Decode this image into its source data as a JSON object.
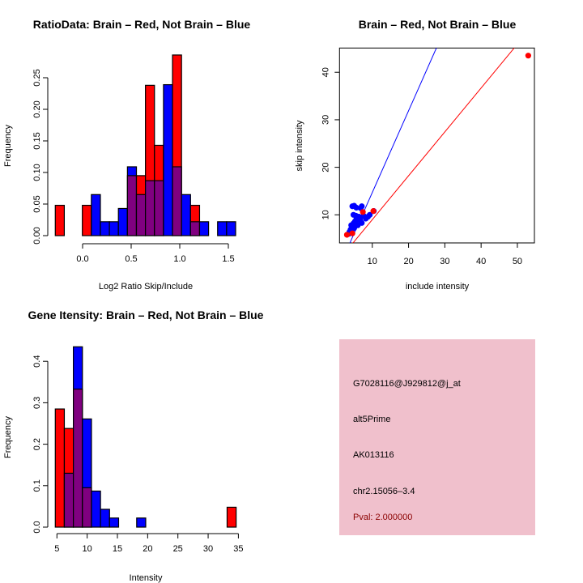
{
  "chart_data": [
    {
      "type": "bar",
      "title": "RatioData: Brain – Red, Not Brain – Blue",
      "xlabel": "Log2 Ratio Skip/Include",
      "ylabel": "Frequency",
      "bin_start": -0.281,
      "bin_width": 0.0928,
      "xticks": [
        "0.0",
        "0.5",
        "1.0",
        "1.5"
      ],
      "xtick_values": [
        0,
        0.5,
        1.0,
        1.5
      ],
      "yticks": [
        "0.00",
        "0.05",
        "0.10",
        "0.15",
        "0.20",
        "0.25"
      ],
      "ytick_values": [
        0,
        0.05,
        0.1,
        0.15,
        0.2,
        0.25
      ],
      "series": [
        {
          "name": "Brain",
          "color": "#ff0000",
          "values": [
            0.048,
            0,
            0,
            0.048,
            0,
            0,
            0,
            0,
            0.095,
            0.095,
            0.238,
            0.143,
            0,
            0.286,
            0,
            0.048,
            0,
            0,
            0,
            0
          ]
        },
        {
          "name": "Not Brain",
          "color": "#0000ff",
          "values": [
            0,
            0,
            0,
            0,
            0.065,
            0.022,
            0.022,
            0.043,
            0.109,
            0.065,
            0.087,
            0.087,
            0.239,
            0.109,
            0.065,
            0.022,
            0.022,
            0,
            0.022,
            0.022
          ]
        }
      ],
      "overlap_color": "#800080"
    },
    {
      "type": "scatter",
      "title": "Brain – Red, Not Brain – Blue",
      "xlabel": "include intensity",
      "ylabel": "skip intensity",
      "xlim": [
        0.96,
        54.7
      ],
      "ylim": [
        4.09,
        45.1
      ],
      "xticks": [
        "10",
        "20",
        "30",
        "40",
        "50"
      ],
      "xtick_values": [
        10,
        20,
        30,
        40,
        50
      ],
      "yticks": [
        "10",
        "20",
        "30",
        "40"
      ],
      "ytick_values": [
        10,
        20,
        30,
        40
      ],
      "series": [
        {
          "name": "Not Brain",
          "color": "#0000ff",
          "points": [
            [
              4.5,
              11.8
            ],
            [
              5.0,
              11.9
            ],
            [
              5.6,
              11.5
            ],
            [
              7.1,
              11.8
            ],
            [
              6.8,
              11.4
            ],
            [
              4.8,
              10
            ],
            [
              5.5,
              9.8
            ],
            [
              5.2,
              8.6
            ],
            [
              4.5,
              7.5
            ],
            [
              3.7,
              6.4
            ],
            [
              3.5,
              6.0
            ],
            [
              4.0,
              6.9
            ],
            [
              4.8,
              8.2
            ],
            [
              5.8,
              8.9
            ],
            [
              6.3,
              9.6
            ],
            [
              9.3,
              10
            ],
            [
              8.2,
              9.2
            ],
            [
              7.1,
              8.3
            ],
            [
              6.0,
              7.8
            ],
            [
              10.4,
              10.8
            ],
            [
              5.0,
              7.2
            ],
            [
              5.6,
              9.1
            ],
            [
              6.6,
              9.0
            ],
            [
              4.2,
              7.8
            ],
            [
              7.6,
              9.8
            ],
            [
              8.8,
              9.6
            ]
          ]
        },
        {
          "name": "Brain",
          "color": "#ff0000",
          "points": [
            [
              7.4,
              10.6
            ],
            [
              3.0,
              5.8
            ],
            [
              4.5,
              6.1
            ],
            [
              10.3,
              10.8
            ],
            [
              53,
              43.5
            ]
          ]
        }
      ],
      "lines": [
        {
          "name": "blue-line",
          "color": "#0000ff",
          "slope": 1.72,
          "intercept": -2.5
        },
        {
          "name": "red-line",
          "color": "#ff0000",
          "slope": 0.923,
          "intercept": -0.24
        }
      ]
    },
    {
      "type": "bar",
      "title": "Gene Itensity: Brain – Red, Not Brain – Blue",
      "xlabel": "Intensity",
      "ylabel": "Frequency",
      "bin_start": 4.73,
      "bin_width": 1.495,
      "xticks": [
        "5",
        "10",
        "15",
        "20",
        "25",
        "30",
        "35"
      ],
      "xtick_values": [
        5,
        10,
        15,
        20,
        25,
        30,
        35
      ],
      "yticks": [
        "0.0",
        "0.1",
        "0.2",
        "0.3",
        "0.4"
      ],
      "ytick_values": [
        0,
        0.1,
        0.2,
        0.3,
        0.4
      ],
      "series": [
        {
          "name": "Brain",
          "color": "#ff0000",
          "values": [
            0.285,
            0.238,
            0.333,
            0.095,
            0,
            0,
            0,
            0,
            0,
            0,
            0,
            0,
            0,
            0,
            0,
            0,
            0,
            0,
            0,
            0.048
          ]
        },
        {
          "name": "Not Brain",
          "color": "#0000ff",
          "values": [
            0,
            0.13,
            0.435,
            0.261,
            0.087,
            0.043,
            0.022,
            0,
            0,
            0.022,
            0,
            0,
            0,
            0,
            0,
            0,
            0,
            0,
            0,
            0
          ]
        }
      ],
      "overlap_color": "#800080"
    }
  ],
  "info_panel": {
    "background": "#f0c0cc",
    "probe": "G7028116@J929812@j_at",
    "event_type": "alt5Prime",
    "accession": "AK013116",
    "location": "chr2.15056–3.4",
    "pval": "Pval: 2.000000",
    "pval_color": "#8b0000"
  }
}
